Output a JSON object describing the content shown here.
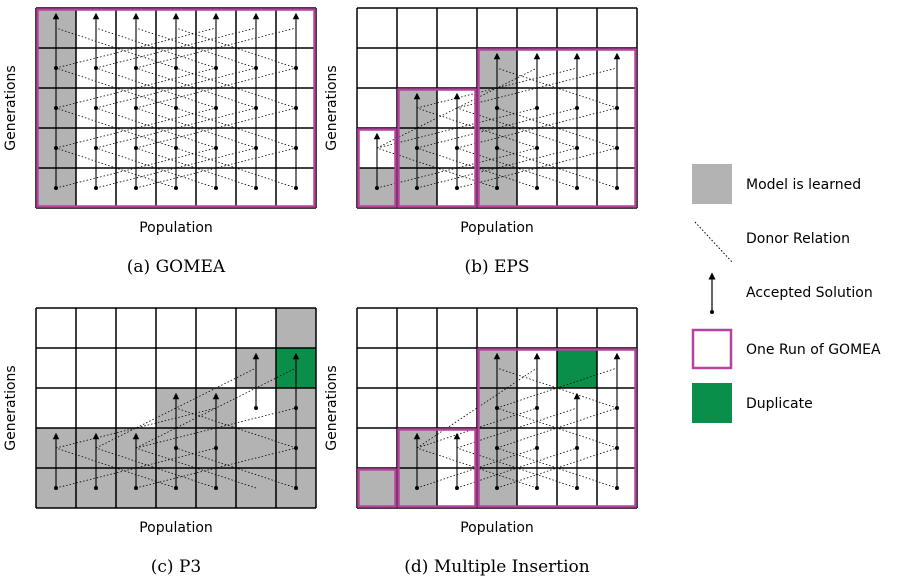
{
  "panels": [
    {
      "caption": "(a) GOMEA",
      "x_label": "Population",
      "y_label": "Generations"
    },
    {
      "caption": "(b) EPS",
      "x_label": "Population",
      "y_label": "Generations"
    },
    {
      "caption": "(c) P3",
      "x_label": "Population",
      "y_label": "Generations"
    },
    {
      "caption": "(d) Multiple Insertion",
      "x_label": "Population",
      "y_label": "Generations"
    }
  ],
  "legend": [
    {
      "label": "Model is learned"
    },
    {
      "label": "Donor Relation"
    },
    {
      "label": "Accepted Solution"
    },
    {
      "label": "One Run of GOMEA"
    },
    {
      "label": "Duplicate"
    }
  ]
}
